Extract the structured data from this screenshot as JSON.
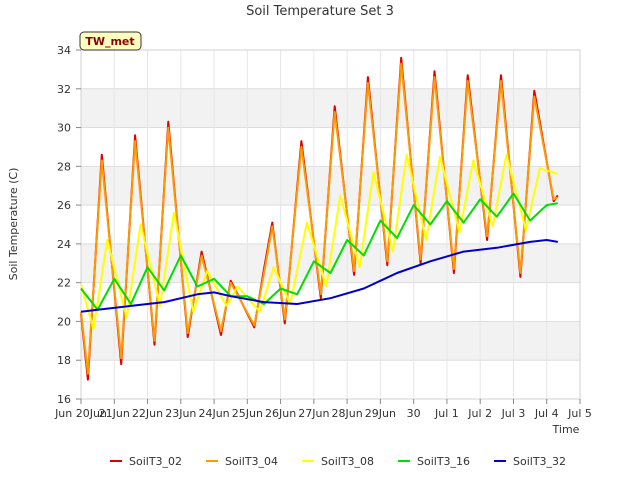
{
  "chart_data": {
    "type": "line",
    "title": "Soil Temperature Set 3",
    "xlabel": "Time",
    "ylabel": "Soil Temperature (C)",
    "site_badge": "TW_met",
    "x_unit": "date",
    "xlim": [
      "2016-06-20",
      "2016-07-05"
    ],
    "ylim": [
      16,
      34
    ],
    "x_ticks": [
      {
        "x": "2016-06-20",
        "label": "Jun 20Jun"
      },
      {
        "x": "2016-06-21",
        "label": "21Jun"
      },
      {
        "x": "2016-06-22",
        "label": "22Jun"
      },
      {
        "x": "2016-06-23",
        "label": "23Jun"
      },
      {
        "x": "2016-06-24",
        "label": "24Jun"
      },
      {
        "x": "2016-06-25",
        "label": "25Jun"
      },
      {
        "x": "2016-06-26",
        "label": "26Jun"
      },
      {
        "x": "2016-06-27",
        "label": "27Jun"
      },
      {
        "x": "2016-06-28",
        "label": "28Jun"
      },
      {
        "x": "2016-06-29",
        "label": "29Jun"
      },
      {
        "x": "2016-06-30",
        "label": "30"
      },
      {
        "x": "2016-07-01",
        "label": "Jul 1"
      },
      {
        "x": "2016-07-02",
        "label": "Jul 2"
      },
      {
        "x": "2016-07-03",
        "label": "Jul 3"
      },
      {
        "x": "2016-07-04",
        "label": "Jul 4"
      },
      {
        "x": "2016-07-05",
        "label": "Jul 5"
      }
    ],
    "y_ticks": [
      16,
      18,
      20,
      22,
      24,
      26,
      28,
      30,
      32,
      34
    ],
    "grid": true,
    "legend_position": "bottom",
    "series": [
      {
        "name": "SoilT3_02",
        "color": "#dd0000",
        "x": [
          "2016-06-20 00:00",
          "2016-06-20 05:00",
          "2016-06-20 15:00",
          "2016-06-21 05:00",
          "2016-06-21 15:00",
          "2016-06-22 05:00",
          "2016-06-22 15:00",
          "2016-06-23 05:00",
          "2016-06-23 15:00",
          "2016-06-24 05:00",
          "2016-06-24 12:00",
          "2016-06-25 05:00",
          "2016-06-25 12:00",
          "2016-06-25 18:00",
          "2016-06-26 03:00",
          "2016-06-26 15:00",
          "2016-06-27 05:00",
          "2016-06-27 15:00",
          "2016-06-28 05:00",
          "2016-06-28 15:00",
          "2016-06-29 05:00",
          "2016-06-29 15:00",
          "2016-06-30 05:00",
          "2016-06-30 15:00",
          "2016-07-01 05:00",
          "2016-07-01 15:00",
          "2016-07-02 05:00",
          "2016-07-02 15:00",
          "2016-07-03 05:00",
          "2016-07-03 15:00",
          "2016-07-04 05:00",
          "2016-07-04 08:00"
        ],
        "y": [
          20.4,
          17.0,
          28.6,
          17.8,
          29.6,
          18.8,
          30.3,
          19.2,
          23.6,
          19.3,
          22.1,
          19.7,
          22.7,
          25.1,
          19.9,
          29.3,
          21.2,
          31.1,
          22.4,
          32.6,
          22.9,
          33.6,
          23.0,
          32.9,
          22.5,
          32.7,
          24.2,
          32.7,
          22.3,
          31.9,
          26.2,
          26.5
        ]
      },
      {
        "name": "SoilT3_04",
        "color": "#ff9900",
        "x": [
          "2016-06-20 00:00",
          "2016-06-20 05:00",
          "2016-06-20 15:00",
          "2016-06-21 05:00",
          "2016-06-21 15:00",
          "2016-06-22 05:00",
          "2016-06-22 15:00",
          "2016-06-23 05:00",
          "2016-06-23 15:00",
          "2016-06-24 05:00",
          "2016-06-24 12:00",
          "2016-06-25 05:00",
          "2016-06-25 12:00",
          "2016-06-25 18:00",
          "2016-06-26 03:00",
          "2016-06-26 15:00",
          "2016-06-27 05:00",
          "2016-06-27 15:00",
          "2016-06-28 05:00",
          "2016-06-28 15:00",
          "2016-06-29 05:00",
          "2016-06-29 15:00",
          "2016-06-30 05:00",
          "2016-06-30 15:00",
          "2016-07-01 05:00",
          "2016-07-01 15:00",
          "2016-07-02 05:00",
          "2016-07-02 15:00",
          "2016-07-03 05:00",
          "2016-07-03 15:00",
          "2016-07-04 05:00",
          "2016-07-04 08:00"
        ],
        "y": [
          20.5,
          17.3,
          28.3,
          18.1,
          29.3,
          19.0,
          30.0,
          19.4,
          23.4,
          19.5,
          22.0,
          19.8,
          22.5,
          24.9,
          20.1,
          29.0,
          21.4,
          30.8,
          22.6,
          32.3,
          23.1,
          33.3,
          23.2,
          32.6,
          22.7,
          32.4,
          24.4,
          32.4,
          22.5,
          31.6,
          26.3,
          26.4
        ]
      },
      {
        "name": "SoilT3_08",
        "color": "#ffff00",
        "x": [
          "2016-06-20 00:00",
          "2016-06-20 09:00",
          "2016-06-20 19:00",
          "2016-06-21 09:00",
          "2016-06-21 19:00",
          "2016-06-22 09:00",
          "2016-06-22 19:00",
          "2016-06-23 09:00",
          "2016-06-23 19:00",
          "2016-06-24 09:00",
          "2016-06-24 17:00",
          "2016-06-25 09:00",
          "2016-06-25 19:00",
          "2016-06-26 07:00",
          "2016-06-26 19:00",
          "2016-06-27 09:00",
          "2016-06-27 19:00",
          "2016-06-28 09:00",
          "2016-06-28 19:00",
          "2016-06-29 09:00",
          "2016-06-29 19:00",
          "2016-06-30 09:00",
          "2016-06-30 19:00",
          "2016-07-01 09:00",
          "2016-07-01 19:00",
          "2016-07-02 09:00",
          "2016-07-02 19:00",
          "2016-07-03 09:00",
          "2016-07-03 19:00",
          "2016-07-04 08:00"
        ],
        "y": [
          21.9,
          19.6,
          24.2,
          20.2,
          25.0,
          20.8,
          25.6,
          20.5,
          22.6,
          20.8,
          21.8,
          20.5,
          22.8,
          20.9,
          25.1,
          21.8,
          26.5,
          22.8,
          27.7,
          23.6,
          28.6,
          24.2,
          28.5,
          24.6,
          28.3,
          24.9,
          28.6,
          24.7,
          27.9,
          27.6
        ]
      },
      {
        "name": "SoilT3_16",
        "color": "#00dd00",
        "x": [
          "2016-06-20 00:00",
          "2016-06-20 12:00",
          "2016-06-21 00:00",
          "2016-06-21 12:00",
          "2016-06-22 00:00",
          "2016-06-22 12:00",
          "2016-06-23 00:00",
          "2016-06-23 12:00",
          "2016-06-24 00:00",
          "2016-06-24 12:00",
          "2016-06-25 00:00",
          "2016-06-25 12:00",
          "2016-06-26 00:00",
          "2016-06-26 12:00",
          "2016-06-27 00:00",
          "2016-06-27 12:00",
          "2016-06-28 00:00",
          "2016-06-28 12:00",
          "2016-06-29 00:00",
          "2016-06-29 12:00",
          "2016-06-30 00:00",
          "2016-06-30 12:00",
          "2016-07-01 00:00",
          "2016-07-01 12:00",
          "2016-07-02 00:00",
          "2016-07-02 12:00",
          "2016-07-03 00:00",
          "2016-07-03 12:00",
          "2016-07-04 00:00",
          "2016-07-04 08:00"
        ],
        "y": [
          21.7,
          20.6,
          22.2,
          20.9,
          22.8,
          21.6,
          23.4,
          21.8,
          22.2,
          21.3,
          21.3,
          20.9,
          21.7,
          21.4,
          23.1,
          22.5,
          24.2,
          23.4,
          25.2,
          24.3,
          26.0,
          25.0,
          26.2,
          25.1,
          26.3,
          25.4,
          26.6,
          25.2,
          26.0,
          26.1
        ]
      },
      {
        "name": "SoilT3_32",
        "color": "#0000cc",
        "x": [
          "2016-06-20 00:00",
          "2016-06-20 12:00",
          "2016-06-21 12:00",
          "2016-06-22 12:00",
          "2016-06-23 12:00",
          "2016-06-24 00:00",
          "2016-06-24 12:00",
          "2016-06-25 12:00",
          "2016-06-26 12:00",
          "2016-06-27 12:00",
          "2016-06-28 12:00",
          "2016-06-29 12:00",
          "2016-06-30 12:00",
          "2016-07-01 12:00",
          "2016-07-02 12:00",
          "2016-07-03 12:00",
          "2016-07-04 00:00",
          "2016-07-04 08:00"
        ],
        "y": [
          20.5,
          20.6,
          20.8,
          21.0,
          21.4,
          21.5,
          21.3,
          21.0,
          20.9,
          21.2,
          21.7,
          22.5,
          23.1,
          23.6,
          23.8,
          24.1,
          24.2,
          24.1
        ]
      }
    ]
  }
}
